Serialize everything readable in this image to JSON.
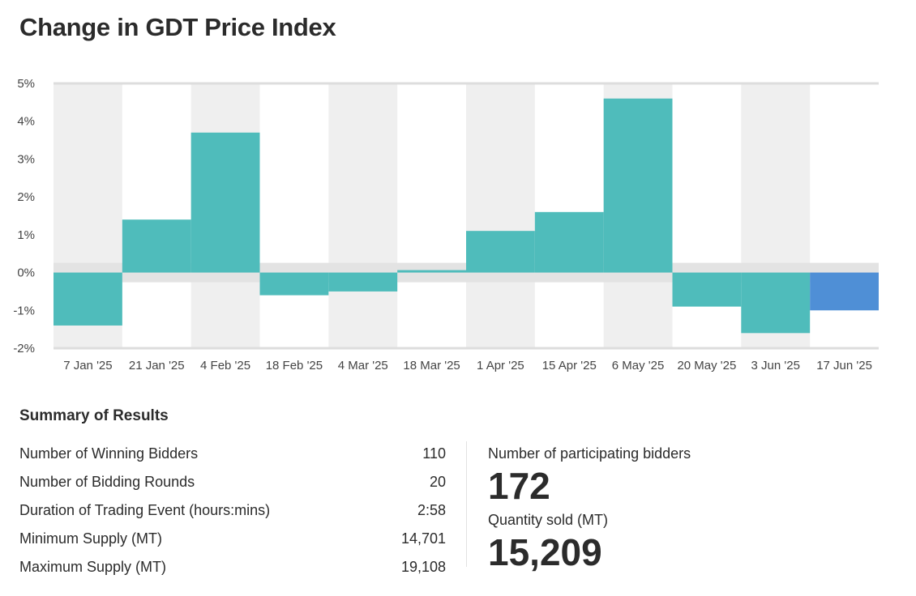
{
  "title": "Change in GDT Price Index",
  "colors": {
    "positive": "#4fbcbb",
    "negative": "#4fbcbb",
    "latest": "#4f8fd6",
    "band": "#efefef",
    "zero_band": "#e3e3e3"
  },
  "chart_data": {
    "type": "bar",
    "categories": [
      "7 Jan '25",
      "21 Jan '25",
      "4 Feb '25",
      "18 Feb '25",
      "4 Mar '25",
      "18 Mar '25",
      "1 Apr '25",
      "15 Apr '25",
      "6 May '25",
      "20 May '25",
      "3 Jun '25",
      "17 Jun '25"
    ],
    "values": [
      -1.4,
      1.4,
      3.7,
      -0.6,
      -0.5,
      -0.0,
      1.1,
      1.6,
      4.6,
      -0.9,
      -1.6,
      -1.0
    ],
    "title": "Change in GDT Price Index",
    "xlabel": "",
    "ylabel": "",
    "ylim": [
      -2,
      5
    ],
    "yticks": [
      5,
      4,
      3,
      2,
      1,
      0,
      -1,
      -2
    ],
    "ytick_labels": [
      "5%",
      "4%",
      "3%",
      "2%",
      "1%",
      "0%",
      "-1%",
      "-2%"
    ],
    "highlight_last": true
  },
  "summary": {
    "title": "Summary of Results",
    "rows": [
      {
        "label": "Number of Winning Bidders",
        "value": "110"
      },
      {
        "label": "Number of Bidding Rounds",
        "value": "20"
      },
      {
        "label": "Duration of Trading Event (hours:mins)",
        "value": "2:58"
      },
      {
        "label": "Minimum Supply (MT)",
        "value": "14,701"
      },
      {
        "label": "Maximum Supply (MT)",
        "value": "19,108"
      }
    ]
  },
  "kpis": {
    "participating_label": "Number of participating bidders",
    "participating_value": "172",
    "quantity_label": "Quantity sold (MT)",
    "quantity_value": "15,209"
  }
}
